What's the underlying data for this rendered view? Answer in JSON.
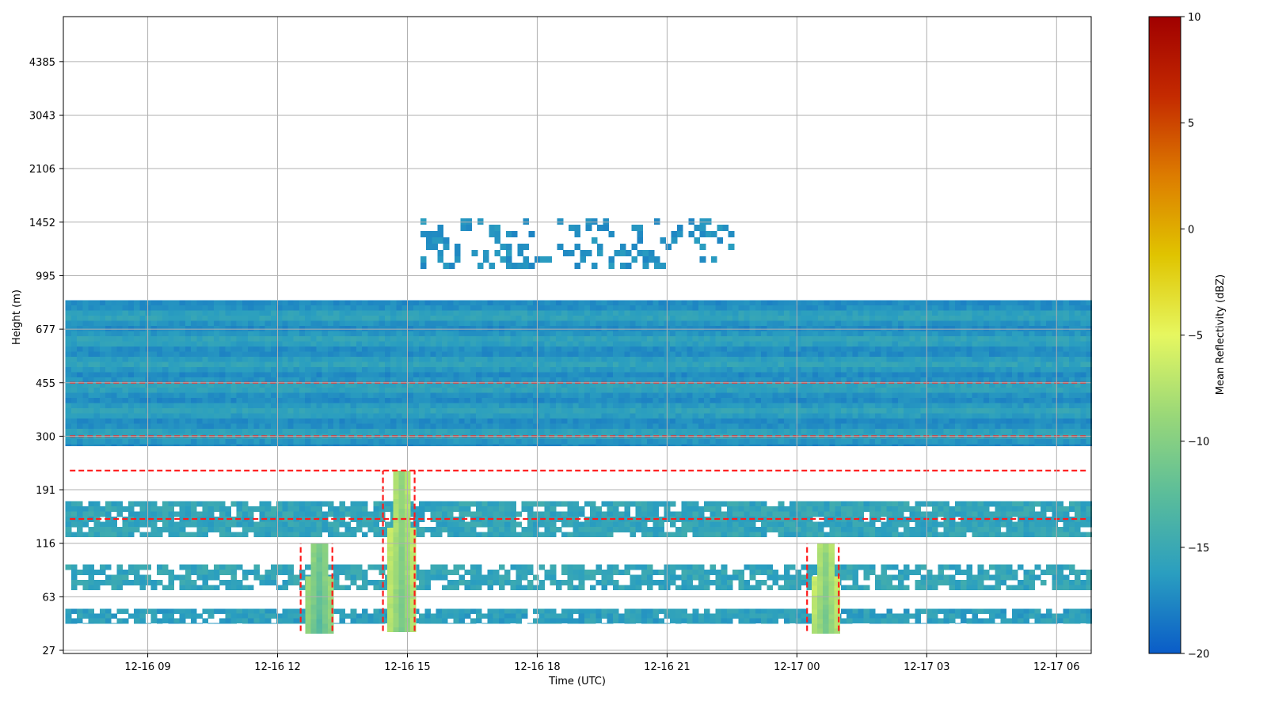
{
  "chart_data": {
    "type": "heatmap",
    "xlabel": "Time (UTC)",
    "ylabel": "Height (m)",
    "x_ticks": [
      "12-16 09",
      "12-16 12",
      "12-16 15",
      "12-16 18",
      "12-16 21",
      "12-17 00",
      "12-17 03",
      "12-17 06"
    ],
    "x_tick_hours": [
      9,
      12,
      15,
      18,
      21,
      24,
      27,
      30
    ],
    "xlim_hours": [
      7.05,
      30.8
    ],
    "y_ticks": [
      "27",
      "63",
      "116",
      "191",
      "300",
      "455",
      "677",
      "995",
      "1452",
      "2106",
      "3043",
      "4385"
    ],
    "y_tick_values": [
      27,
      63,
      116,
      191,
      300,
      455,
      677,
      995,
      1452,
      2106,
      3043,
      4385
    ],
    "y_scale": "log-like (range-gate spacing)",
    "colorbar": {
      "label": "Mean Reflectivity (dBZ)",
      "min": -20,
      "max": 10,
      "ticks": [
        "10",
        "5",
        "0",
        "−5",
        "−10",
        "−15",
        "−20"
      ],
      "tick_values": [
        10,
        5,
        0,
        -5,
        -10,
        -15,
        -20
      ],
      "colormap": [
        "#0a5cc8",
        "#2a9ec0",
        "#5bbd9a",
        "#9ad878",
        "#e6f760",
        "#e0c400",
        "#dd7c00",
        "#c42a00",
        "#a00000"
      ]
    },
    "contour": {
      "color": "#ff1a1a",
      "style": "dashed"
    },
    "grid": true,
    "features": [
      {
        "name": "main layer",
        "height_from": 280,
        "height_to": 850,
        "hours_from": 7.1,
        "hours_to": 30.8,
        "dbz": -16.5
      },
      {
        "name": "upper cloud",
        "height_from": 1100,
        "height_to": 1500,
        "hours_from": 15.3,
        "hours_to": 22.5,
        "dbz": -17
      },
      {
        "name": "band 150 m",
        "height_from": 125,
        "height_to": 175,
        "hours_from": 7.1,
        "hours_to": 30.8,
        "dbz": -15.5
      },
      {
        "name": "band 80 m",
        "height_from": 70,
        "height_to": 95,
        "hours_from": 7.1,
        "hours_to": 30.8,
        "dbz": -15.5
      },
      {
        "name": "band 50 m",
        "height_from": 45,
        "height_to": 55,
        "hours_from": 7.1,
        "hours_to": 30.8,
        "dbz": -16
      },
      {
        "name": "plume 13h",
        "hours": 12.9,
        "height_from": 40,
        "height_to": 116,
        "dbz": -11
      },
      {
        "name": "plume 14.8h",
        "hours": 14.8,
        "height_from": 40,
        "height_to": 230,
        "dbz": -9
      },
      {
        "name": "plume 24.6h",
        "hours": 24.6,
        "height_from": 40,
        "height_to": 116,
        "dbz": -9
      }
    ]
  }
}
